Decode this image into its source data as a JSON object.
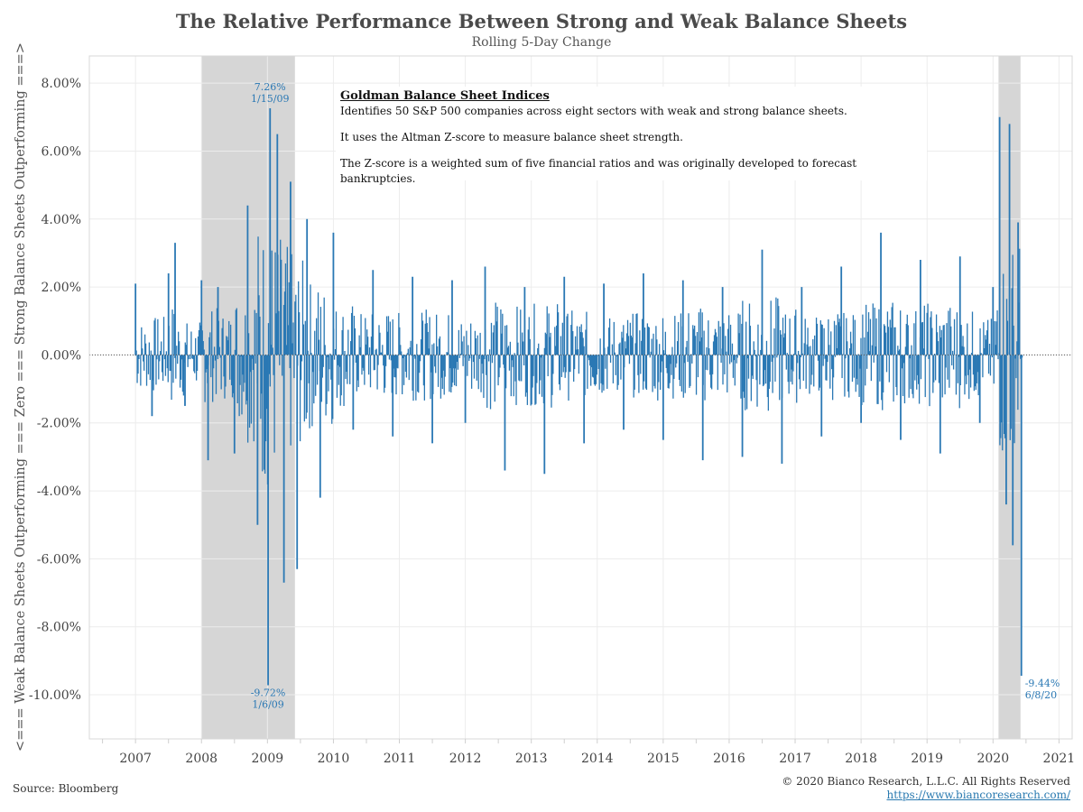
{
  "header": {
    "title": "The Relative Performance Between Strong and Weak Balance Sheets",
    "subtitle": "Rolling 5-Day Change"
  },
  "note": {
    "title": "Goldman Balance Sheet Indices",
    "line1": "Identifies 50 S&P 500 companies across eight sectors with weak  and strong balance sheets.",
    "line2": "It uses the Altman Z-score to measure balance sheet strength.",
    "line3": "The Z-score is a weighted sum of five financial ratios and was originally developed to forecast bankruptcies."
  },
  "footer": {
    "source": "Source: Bloomberg",
    "copyright": "© 2020 Bianco Research, L.L.C. All Rights Reserved",
    "url": "https://www.biancoresearch.com/"
  },
  "colors": {
    "series": "#2a78b4",
    "recession_shading": "#d6d6d6",
    "grid": "#ececec",
    "annotation": "#2a78b4"
  },
  "chart_data": {
    "type": "bar",
    "title": "The Relative Performance Between Strong and Weak Balance Sheets",
    "subtitle": "Rolling 5-Day Change",
    "xlabel": "",
    "ylabel": "<=== Weak Balance Sheets Outperforming === Zero === Strong Balance Sheets Outperforming ===>",
    "xlim": [
      2006.3,
      2021.2
    ],
    "ylim": [
      -11.3,
      8.8
    ],
    "x_ticks": [
      "2007",
      "2008",
      "2009",
      "2010",
      "2011",
      "2012",
      "2013",
      "2014",
      "2015",
      "2016",
      "2017",
      "2018",
      "2019",
      "2020",
      "2021"
    ],
    "y_ticks": [
      8,
      6,
      4,
      2,
      0,
      -2,
      -4,
      -6,
      -8,
      -10
    ],
    "y_tick_labels": [
      "8.00%",
      "6.00%",
      "4.00%",
      "2.00%",
      "0.00%",
      "-2.00%",
      "-4.00%",
      "-6.00%",
      "-8.00%",
      "-10.00%"
    ],
    "grid": true,
    "zero_line": "dotted",
    "shaded_periods": [
      {
        "start": "2008-01",
        "end": "2009-06"
      },
      {
        "start": "2020-02",
        "end": "2020-06"
      }
    ],
    "annotations": [
      {
        "x": 2009.04,
        "y": 7.26,
        "value": "7.26%",
        "date": "1/15/09"
      },
      {
        "x": 2009.01,
        "y": -9.72,
        "value": "-9.72%",
        "date": "1/6/09"
      },
      {
        "x": 2020.43,
        "y": -9.44,
        "value": "-9.44%",
        "date": "6/8/20"
      }
    ],
    "series": [
      {
        "values_description_unit": "percent",
        "x": [
          2007.0,
          2007.25,
          2007.5,
          2007.6,
          2007.75,
          2008.0,
          2008.1,
          2008.25,
          2008.5,
          2008.7,
          2008.85,
          2009.01,
          2009.04,
          2009.15,
          2009.25,
          2009.35,
          2009.45,
          2009.6,
          2009.8,
          2010.0,
          2010.3,
          2010.6,
          2010.9,
          2011.2,
          2011.5,
          2011.8,
          2012.0,
          2012.3,
          2012.6,
          2012.9,
          2013.2,
          2013.5,
          2013.8,
          2014.1,
          2014.4,
          2014.7,
          2015.0,
          2015.3,
          2015.6,
          2015.9,
          2016.2,
          2016.5,
          2016.8,
          2017.1,
          2017.4,
          2017.7,
          2018.0,
          2018.3,
          2018.6,
          2018.9,
          2019.2,
          2019.5,
          2019.8,
          2020.0,
          2020.1,
          2020.2,
          2020.25,
          2020.3,
          2020.38,
          2020.43
        ],
        "y": [
          2.1,
          -1.8,
          2.4,
          3.3,
          -1.5,
          2.2,
          -3.1,
          2.0,
          -2.9,
          4.4,
          -5.0,
          -9.72,
          7.26,
          6.5,
          -6.7,
          5.1,
          -6.3,
          4.0,
          -4.2,
          3.6,
          -2.2,
          2.5,
          -2.4,
          2.3,
          -2.6,
          2.2,
          -2.0,
          2.6,
          -3.4,
          2.0,
          -3.5,
          2.3,
          -2.6,
          2.1,
          -2.2,
          2.4,
          -2.5,
          2.2,
          -3.1,
          2.0,
          -3.0,
          3.1,
          -3.2,
          2.0,
          -2.4,
          2.6,
          -2.0,
          3.6,
          -2.5,
          2.8,
          -2.9,
          2.9,
          -2.0,
          2.0,
          7.0,
          -4.4,
          6.8,
          -5.6,
          3.9,
          -9.44
        ]
      }
    ]
  }
}
